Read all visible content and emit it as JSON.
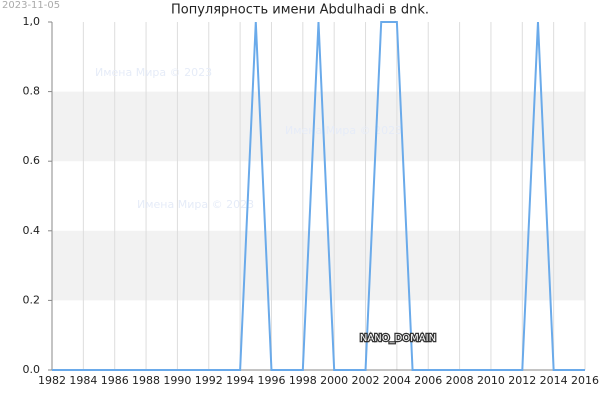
{
  "chart_data": {
    "type": "line",
    "title": "Популярность имени Abdulhadi в dnk.",
    "date_stamp": "2023-11-05",
    "watermark": "Имена Мира © 2023",
    "domain_label": "NANO_DOMAIN",
    "x": [
      1982,
      1983,
      1984,
      1985,
      1986,
      1987,
      1988,
      1989,
      1990,
      1991,
      1992,
      1993,
      1994,
      1995,
      1996,
      1997,
      1998,
      1999,
      2000,
      2001,
      2002,
      2003,
      2004,
      2005,
      2006,
      2007,
      2008,
      2009,
      2010,
      2011,
      2012,
      2013,
      2014,
      2015,
      2016
    ],
    "series": [
      {
        "name": "Abdulhadi",
        "color": "#6aaaea",
        "values": [
          0,
          0,
          0,
          0,
          0,
          0,
          0,
          0,
          0,
          0,
          0,
          0,
          0,
          1,
          0,
          0,
          0,
          1,
          0,
          0,
          0,
          1,
          1,
          0,
          0,
          0,
          0,
          0,
          0,
          0,
          0,
          1,
          0,
          0,
          0
        ]
      }
    ],
    "xlim": [
      1982,
      2016
    ],
    "xticks": [
      1982,
      1984,
      1986,
      1988,
      1990,
      1992,
      1994,
      1996,
      1998,
      2000,
      2002,
      2004,
      2006,
      2008,
      2010,
      2012,
      2014,
      2016
    ],
    "ylim": [
      0,
      1
    ],
    "yticks": [
      {
        "value": 0,
        "label": "0.0"
      },
      0.2,
      0.4,
      0.6,
      0.8,
      {
        "value": 1,
        "label": "1,0"
      }
    ],
    "grid": true
  }
}
